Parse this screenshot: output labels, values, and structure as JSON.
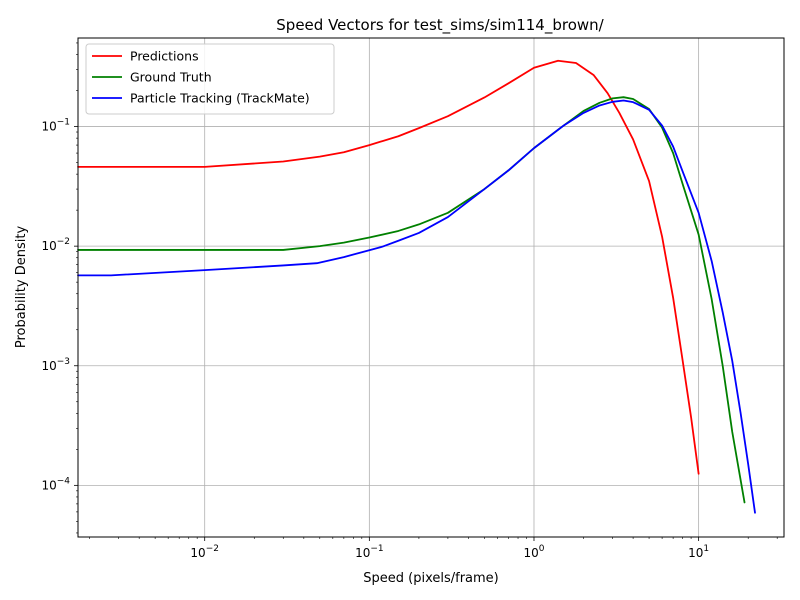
{
  "chart_data": {
    "type": "line",
    "title": "Speed Vectors for test_sims/sim114_brown/",
    "xlabel": "Speed (pixels/frame)",
    "ylabel": "Probability Density",
    "xscale": "log",
    "yscale": "log",
    "xlim": [
      0.0017,
      33
    ],
    "ylim": [
      3.7e-05,
      0.55
    ],
    "grid": true,
    "legend_position": "top-left",
    "x_ticks": [
      {
        "value": 0.01,
        "base": "10",
        "exp": "−2"
      },
      {
        "value": 0.1,
        "base": "10",
        "exp": "−1"
      },
      {
        "value": 1,
        "base": "10",
        "exp": "0"
      },
      {
        "value": 10,
        "base": "10",
        "exp": "1"
      }
    ],
    "y_ticks": [
      {
        "value": 0.0001,
        "base": "10",
        "exp": "−4"
      },
      {
        "value": 0.001,
        "base": "10",
        "exp": "−3"
      },
      {
        "value": 0.01,
        "base": "10",
        "exp": "−2"
      },
      {
        "value": 0.1,
        "base": "10",
        "exp": "−1"
      }
    ],
    "series": [
      {
        "name": "Predictions",
        "color": "#ff0000",
        "points": [
          [
            0.0017,
            0.046
          ],
          [
            0.01,
            0.046
          ],
          [
            0.03,
            0.051
          ],
          [
            0.05,
            0.056
          ],
          [
            0.07,
            0.061
          ],
          [
            0.1,
            0.07
          ],
          [
            0.15,
            0.083
          ],
          [
            0.2,
            0.097
          ],
          [
            0.3,
            0.122
          ],
          [
            0.5,
            0.175
          ],
          [
            0.7,
            0.23
          ],
          [
            1.0,
            0.31
          ],
          [
            1.4,
            0.355
          ],
          [
            1.8,
            0.34
          ],
          [
            2.3,
            0.27
          ],
          [
            2.8,
            0.19
          ],
          [
            3.3,
            0.13
          ],
          [
            4.0,
            0.078
          ],
          [
            5.0,
            0.035
          ],
          [
            6.0,
            0.012
          ],
          [
            7.0,
            0.0037
          ],
          [
            8.0,
            0.0011
          ],
          [
            9.0,
            0.00037
          ],
          [
            10.0,
            0.000125
          ]
        ]
      },
      {
        "name": "Ground Truth",
        "color": "#008000",
        "points": [
          [
            0.0017,
            0.0093
          ],
          [
            0.03,
            0.0093
          ],
          [
            0.05,
            0.01
          ],
          [
            0.07,
            0.0107
          ],
          [
            0.1,
            0.0118
          ],
          [
            0.15,
            0.0134
          ],
          [
            0.2,
            0.0152
          ],
          [
            0.3,
            0.019
          ],
          [
            0.5,
            0.03
          ],
          [
            0.7,
            0.043
          ],
          [
            1.0,
            0.066
          ],
          [
            1.5,
            0.101
          ],
          [
            2.0,
            0.135
          ],
          [
            2.5,
            0.158
          ],
          [
            3.0,
            0.172
          ],
          [
            3.5,
            0.176
          ],
          [
            4.0,
            0.17
          ],
          [
            5.0,
            0.14
          ],
          [
            6.0,
            0.098
          ],
          [
            7.0,
            0.06
          ],
          [
            8.0,
            0.033
          ],
          [
            10.0,
            0.0125
          ],
          [
            12.0,
            0.0036
          ],
          [
            14.0,
            0.001
          ],
          [
            16.0,
            0.00028
          ],
          [
            19.0,
            7.2e-05
          ]
        ]
      },
      {
        "name": "Particle Tracking (TrackMate)",
        "color": "#0000ff",
        "points": [
          [
            0.0017,
            0.0057
          ],
          [
            0.0027,
            0.0057
          ],
          [
            0.01,
            0.0063
          ],
          [
            0.03,
            0.0069
          ],
          [
            0.048,
            0.0072
          ],
          [
            0.07,
            0.0081
          ],
          [
            0.09,
            0.0089
          ],
          [
            0.12,
            0.0099
          ],
          [
            0.15,
            0.0111
          ],
          [
            0.2,
            0.0129
          ],
          [
            0.3,
            0.0175
          ],
          [
            0.5,
            0.03
          ],
          [
            0.7,
            0.043
          ],
          [
            1.0,
            0.066
          ],
          [
            1.5,
            0.101
          ],
          [
            2.0,
            0.13
          ],
          [
            2.5,
            0.15
          ],
          [
            3.0,
            0.161
          ],
          [
            3.5,
            0.165
          ],
          [
            4.0,
            0.16
          ],
          [
            5.0,
            0.138
          ],
          [
            6.0,
            0.102
          ],
          [
            7.0,
            0.068
          ],
          [
            8.0,
            0.042
          ],
          [
            10.0,
            0.019
          ],
          [
            12.0,
            0.0075
          ],
          [
            14.0,
            0.0028
          ],
          [
            16.0,
            0.0011
          ],
          [
            18.0,
            0.0004
          ],
          [
            20.0,
            0.00015
          ],
          [
            22.0,
            5.9e-05
          ]
        ]
      }
    ]
  }
}
